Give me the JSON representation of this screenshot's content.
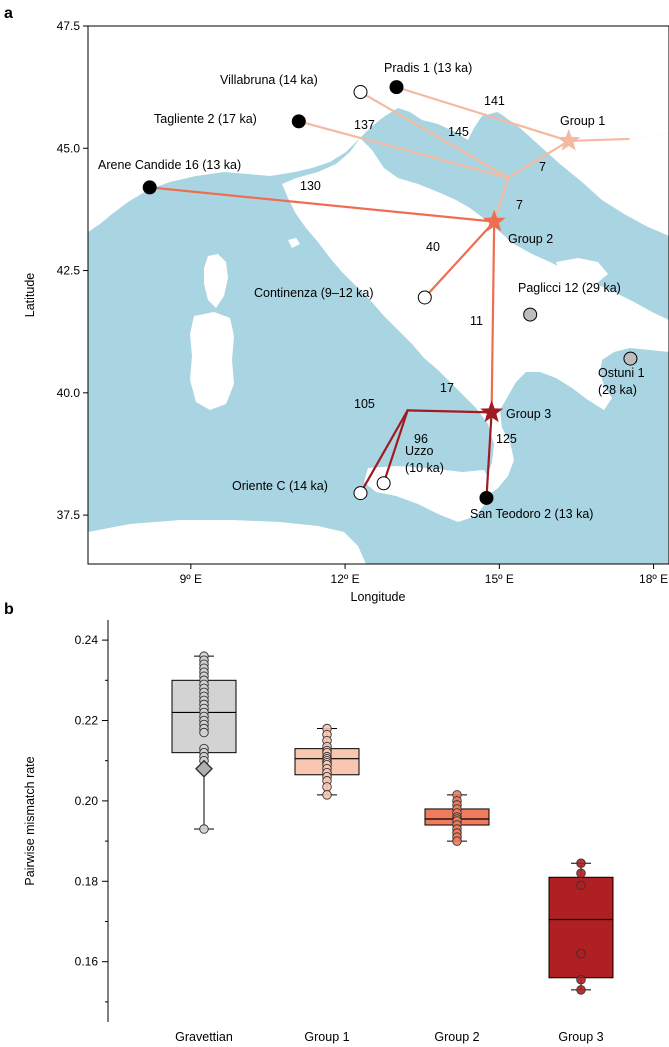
{
  "panel_a": {
    "letter": "a",
    "xlabel": "Longitude",
    "ylabel": "Latitude",
    "xlim": [
      7.0,
      18.3
    ],
    "ylim": [
      36.5,
      47.5
    ],
    "xticks": [
      {
        "value": 9,
        "label": "9º E"
      },
      {
        "value": 12,
        "label": "12º E"
      },
      {
        "value": 15,
        "label": "15º E"
      },
      {
        "value": 18,
        "label": "18º E"
      }
    ],
    "yticks": [
      {
        "value": 37.5,
        "label": "37.5"
      },
      {
        "value": 40.0,
        "label": "40.0"
      },
      {
        "value": 42.5,
        "label": "42.5"
      },
      {
        "value": 45.0,
        "label": "45.0"
      },
      {
        "value": 47.5,
        "label": "47.5"
      }
    ],
    "colors": {
      "sea": "#a9d5e2",
      "land": "#ffffff",
      "group1": "#f4b9a0",
      "group2": "#ee6e52",
      "group3": "#a01a22"
    },
    "sites": [
      {
        "name": "Pradis 1 (13 ka)",
        "lon": 13.0,
        "lat": 46.25,
        "fill": "#000000"
      },
      {
        "name": "Villabruna (14 ka)",
        "lon": 12.3,
        "lat": 46.15,
        "fill": "#ffffff"
      },
      {
        "name": "Tagliente 2 (17 ka)",
        "lon": 11.1,
        "lat": 45.55,
        "fill": "#000000"
      },
      {
        "name": "Arene Candide 16 (13 ka)",
        "lon": 8.2,
        "lat": 44.2,
        "fill": "#000000"
      },
      {
        "name": "Continenza (9–12 ka)",
        "lon": 13.55,
        "lat": 41.95,
        "fill": "#ffffff"
      },
      {
        "name": "Paglicci 12 (29 ka)",
        "lon": 15.6,
        "lat": 41.6,
        "fill": "#bdbdbd"
      },
      {
        "name": "Ostuni 1",
        "name2": "(28 ka)",
        "lon": 17.55,
        "lat": 40.7,
        "fill": "#bdbdbd"
      },
      {
        "name": "Uzzo",
        "name2": "(10 ka)",
        "lon": 12.75,
        "lat": 38.15,
        "fill": "#ffffff"
      },
      {
        "name": "Oriente C (14 ka)",
        "lon": 12.3,
        "lat": 37.95,
        "fill": "#ffffff"
      },
      {
        "name": "San Teodoro 2 (13 ka)",
        "lon": 14.75,
        "lat": 37.85,
        "fill": "#000000"
      }
    ],
    "groups": [
      {
        "name": "Group 1",
        "lon": 16.35,
        "lat": 45.15,
        "color": "#f4b9a0"
      },
      {
        "name": "Group 2",
        "lon": 14.9,
        "lat": 43.5,
        "color": "#ee6e52"
      },
      {
        "name": "Group 3",
        "lon": 14.85,
        "lat": 39.6,
        "color": "#a01a22"
      }
    ],
    "branch_labels": [
      "141",
      "137",
      "145",
      "7",
      "130",
      "7",
      "40",
      "11",
      "17",
      "105",
      "96",
      "125"
    ]
  },
  "panel_b": {
    "letter": "b",
    "ylabel": "Pairwise mismatch rate",
    "chart_data": {
      "type": "box",
      "ylim": [
        0.145,
        0.245
      ],
      "yticks": [
        "0.16",
        "0.18",
        "0.20",
        "0.22",
        "0.24"
      ],
      "categories": [
        "Gravettian",
        "Group 1",
        "Group 2",
        "Group 3"
      ],
      "boxes": [
        {
          "name": "Gravettian",
          "color": "#d3d3d3",
          "whisker_low": 0.193,
          "q1": 0.212,
          "median": 0.222,
          "q3": 0.23,
          "whisker_high": 0.236,
          "points": [
            0.236,
            0.235,
            0.234,
            0.233,
            0.232,
            0.231,
            0.23,
            0.229,
            0.228,
            0.227,
            0.226,
            0.225,
            0.224,
            0.223,
            0.222,
            0.221,
            0.22,
            0.219,
            0.218,
            0.217,
            0.213,
            0.212,
            0.211,
            0.21,
            0.193
          ],
          "diamond": 0.208
        },
        {
          "name": "Group 1",
          "color": "#f9c6b0",
          "whisker_low": 0.2015,
          "q1": 0.2065,
          "median": 0.2105,
          "q3": 0.213,
          "whisker_high": 0.218,
          "points": [
            0.218,
            0.2165,
            0.215,
            0.2135,
            0.2125,
            0.212,
            0.211,
            0.2105,
            0.21,
            0.2095,
            0.209,
            0.208,
            0.207,
            0.206,
            0.205,
            0.2035,
            0.2015
          ]
        },
        {
          "name": "Group 2",
          "color": "#f07c5f",
          "whisker_low": 0.19,
          "q1": 0.194,
          "median": 0.1955,
          "q3": 0.198,
          "whisker_high": 0.2015,
          "points": [
            0.2015,
            0.2,
            0.199,
            0.198,
            0.197,
            0.196,
            0.1955,
            0.195,
            0.194,
            0.193,
            0.192,
            0.191,
            0.19
          ]
        },
        {
          "name": "Group 3",
          "color": "#b01f22",
          "whisker_low": 0.153,
          "q1": 0.156,
          "median": 0.1705,
          "q3": 0.181,
          "whisker_high": 0.1845,
          "points": [
            0.1845,
            0.182,
            0.179,
            0.162,
            0.1555,
            0.153
          ]
        }
      ]
    }
  }
}
